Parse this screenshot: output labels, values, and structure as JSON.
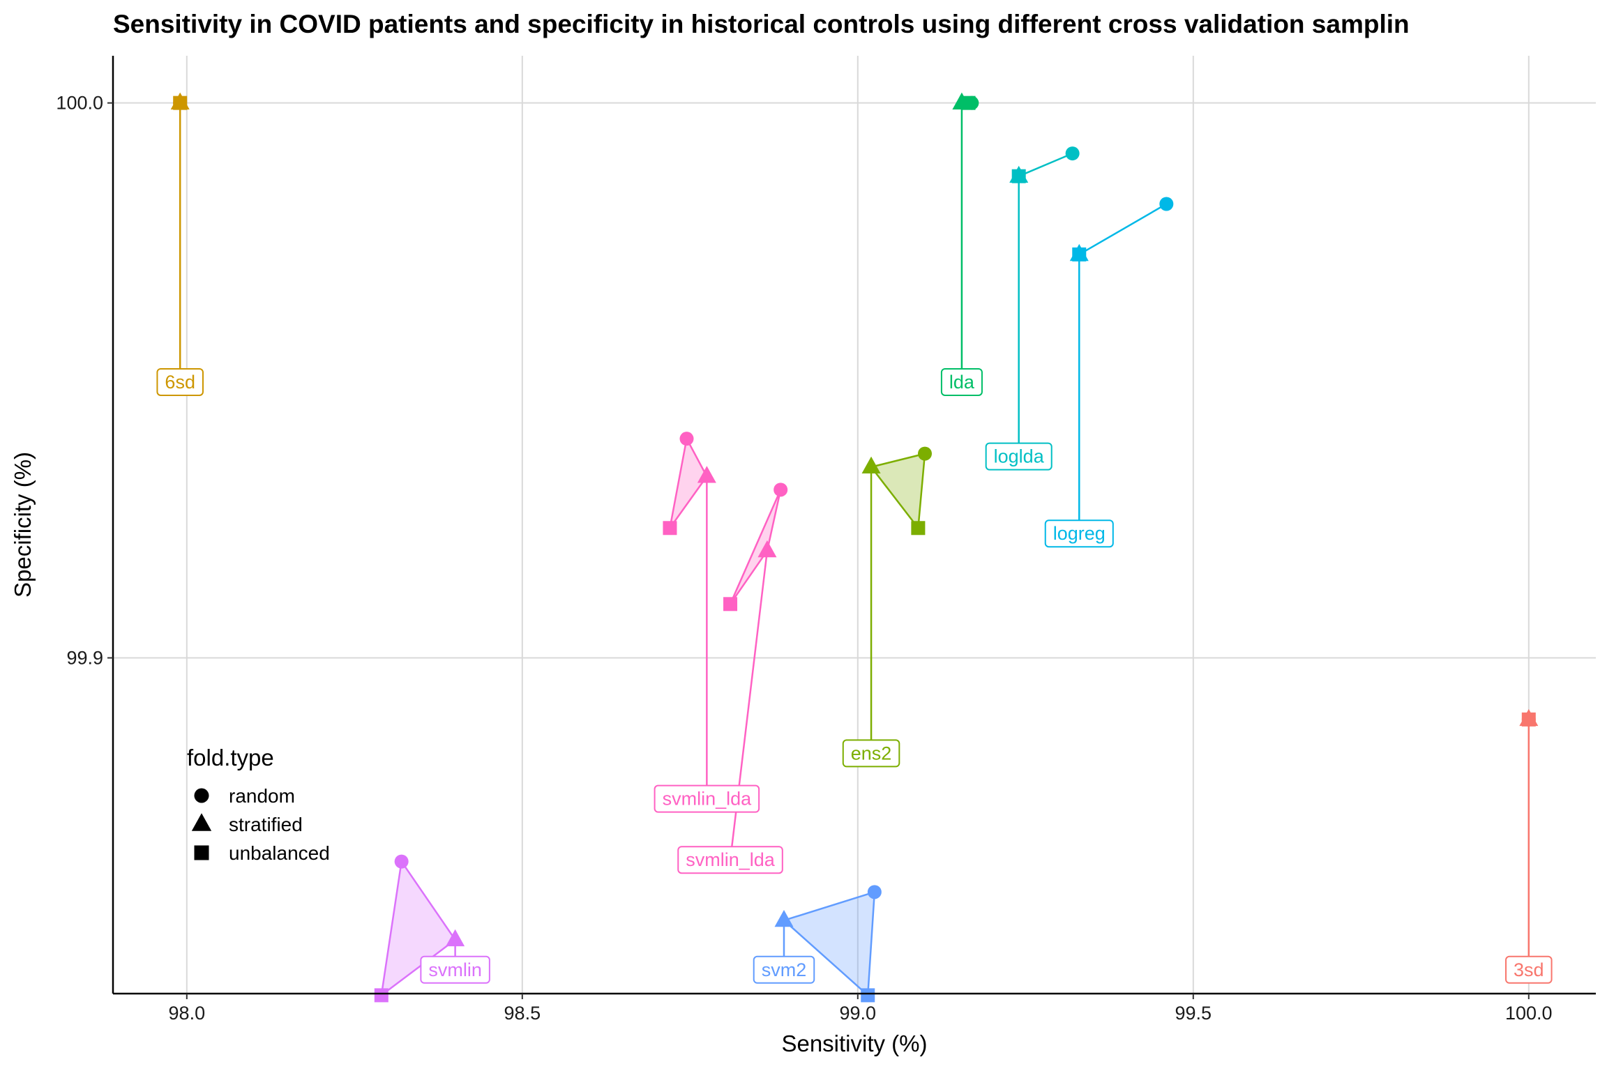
{
  "chart_data": {
    "type": "scatter",
    "title": "Sensitivity in COVID patients and specificity in historical controls using different cross validation samplin",
    "xlabel": "Sensitivity (%)",
    "ylabel": "Specificity (%)",
    "xlim": [
      97.89,
      100.1
    ],
    "ylim": [
      99.8395,
      100.0085
    ],
    "x_ticks": [
      98.0,
      98.5,
      99.0,
      99.5,
      100.0
    ],
    "x_tick_labels": [
      "98.0",
      "98.5",
      "99.0",
      "99.5",
      "100.0"
    ],
    "y_ticks": [
      99.9,
      100.0
    ],
    "y_tick_labels": [
      "99.9",
      "100.0"
    ],
    "grid": true,
    "legend": {
      "title": "fold.type",
      "position": "inside-bottom-left",
      "entries": [
        {
          "label": "random",
          "shape": "circle"
        },
        {
          "label": "stratified",
          "shape": "triangle"
        },
        {
          "label": "unbalanced",
          "shape": "square"
        }
      ]
    },
    "series": [
      {
        "name": "3sd",
        "color": "#F8766D",
        "points": {
          "random": [
            100.0,
            99.8889
          ],
          "stratified": [
            100.0,
            99.8889
          ],
          "unbalanced": [
            100.0,
            99.8889
          ]
        },
        "label": [
          100.0,
          99.8438
        ]
      },
      {
        "name": "6sd",
        "color": "#CD9600",
        "points": {
          "random": [
            97.99,
            100.0
          ],
          "stratified": [
            97.99,
            100.0
          ],
          "unbalanced": [
            97.99,
            100.0
          ]
        },
        "label": [
          97.99,
          99.9497
        ]
      },
      {
        "name": "ens2",
        "color": "#7CAE00",
        "points": {
          "random": [
            99.1,
            99.9368
          ],
          "stratified": [
            99.02,
            99.9344
          ],
          "unbalanced": [
            99.09,
            99.9234
          ]
        },
        "label": [
          99.02,
          99.8828
        ]
      },
      {
        "name": "lda",
        "color": "#00BE67",
        "points": {
          "random": [
            99.17,
            100.0
          ],
          "stratified": [
            99.155,
            100.0
          ],
          "unbalanced": [
            99.165,
            100.0
          ]
        },
        "label": [
          99.155,
          99.9497
        ]
      },
      {
        "name": "loglda",
        "color": "#00BFC4",
        "points": {
          "random": [
            99.32,
            99.9909
          ],
          "stratified": [
            99.24,
            99.9868
          ],
          "unbalanced": [
            99.24,
            99.9868
          ]
        },
        "label": [
          99.24,
          99.9363
        ]
      },
      {
        "name": "logreg",
        "color": "#00B8E7",
        "points": {
          "random": [
            99.46,
            99.9818
          ],
          "stratified": [
            99.33,
            99.9727
          ],
          "unbalanced": [
            99.33,
            99.9727
          ]
        },
        "label": [
          99.33,
          99.9224
        ]
      },
      {
        "name": "svm2",
        "color": "#619CFF",
        "points": {
          "random": [
            99.025,
            99.8578
          ],
          "stratified": [
            98.89,
            99.8527
          ],
          "unbalanced": [
            99.015,
            99.8392
          ]
        },
        "label": [
          98.89,
          99.8438
        ]
      },
      {
        "name": "svmlin",
        "color": "#DB72FB",
        "points": {
          "random": [
            98.32,
            99.8633
          ],
          "stratified": [
            98.4,
            99.8492
          ],
          "unbalanced": [
            98.29,
            99.8392
          ]
        },
        "label": [
          98.4,
          99.8438
        ]
      },
      {
        "name": "svmlin_lda",
        "color": "#FF61C3",
        "points": {
          "random": [
            98.745,
            99.9395
          ],
          "stratified": [
            98.775,
            99.9327
          ],
          "unbalanced": [
            98.72,
            99.9234
          ]
        },
        "label": [
          98.775,
          99.8746
        ]
      },
      {
        "name": "svmlin_lda",
        "color": "#FF61C3",
        "points": {
          "random": [
            98.885,
            99.9303
          ],
          "stratified": [
            98.865,
            99.9193
          ],
          "unbalanced": [
            98.81,
            99.9097
          ]
        },
        "label": [
          98.81,
          99.8636
        ]
      }
    ]
  }
}
